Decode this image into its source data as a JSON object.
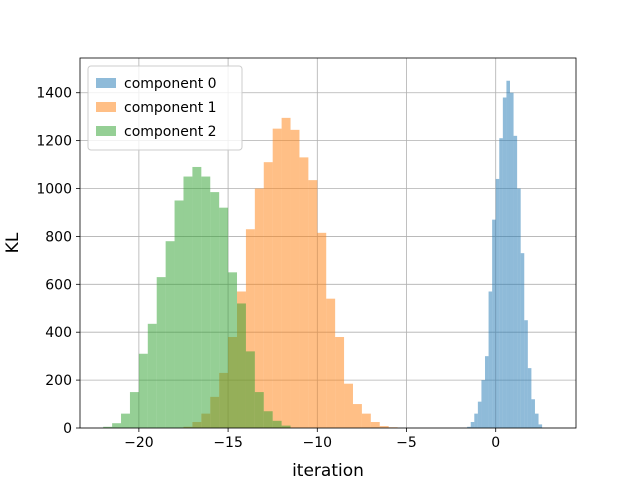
{
  "chart_data": {
    "type": "histogram",
    "title": "",
    "xlabel": "iteration",
    "ylabel": "KL",
    "xlim": [
      -23.3,
      4.5
    ],
    "ylim": [
      0,
      1545
    ],
    "xticks": [
      -20,
      -15,
      -10,
      -5,
      0
    ],
    "xtick_labels": [
      "−20",
      "−15",
      "−10",
      "−5",
      "0"
    ],
    "yticks": [
      0,
      200,
      400,
      600,
      800,
      1000,
      1200,
      1400
    ],
    "ytick_labels": [
      "0",
      "200",
      "400",
      "600",
      "800",
      "1000",
      "1200",
      "1400"
    ],
    "grid": true,
    "legend_position": "upper-left",
    "series": [
      {
        "name": "component 0",
        "color": "#1f77b4",
        "alpha": 0.5,
        "bin_width": 0.2,
        "bins": [
          [
            -1.6,
            5
          ],
          [
            -1.4,
            25
          ],
          [
            -1.2,
            60
          ],
          [
            -1.0,
            110
          ],
          [
            -0.8,
            200
          ],
          [
            -0.6,
            300
          ],
          [
            -0.4,
            570
          ],
          [
            -0.2,
            870
          ],
          [
            0.0,
            1040
          ],
          [
            0.2,
            1210
          ],
          [
            0.4,
            1380
          ],
          [
            0.6,
            1450
          ],
          [
            0.8,
            1400
          ],
          [
            1.0,
            1220
          ],
          [
            1.2,
            1000
          ],
          [
            1.4,
            730
          ],
          [
            1.6,
            450
          ],
          [
            1.8,
            250
          ],
          [
            2.0,
            120
          ],
          [
            2.2,
            60
          ],
          [
            2.4,
            15
          ]
        ]
      },
      {
        "name": "component 1",
        "color": "#ff7f0e",
        "alpha": 0.5,
        "bin_width": 0.5,
        "bins": [
          [
            -17.5,
            5
          ],
          [
            -17.0,
            25
          ],
          [
            -16.5,
            60
          ],
          [
            -16.0,
            130
          ],
          [
            -15.5,
            230
          ],
          [
            -15.0,
            380
          ],
          [
            -14.5,
            570
          ],
          [
            -14.0,
            830
          ],
          [
            -13.5,
            1000
          ],
          [
            -13.0,
            1110
          ],
          [
            -12.5,
            1250
          ],
          [
            -12.0,
            1295
          ],
          [
            -11.5,
            1245
          ],
          [
            -11.0,
            1130
          ],
          [
            -10.5,
            1035
          ],
          [
            -10.0,
            815
          ],
          [
            -9.5,
            540
          ],
          [
            -9.0,
            380
          ],
          [
            -8.5,
            185
          ],
          [
            -8.0,
            100
          ],
          [
            -7.5,
            60
          ],
          [
            -7.0,
            25
          ],
          [
            -6.5,
            8
          ],
          [
            -6.0,
            3
          ]
        ]
      },
      {
        "name": "component 2",
        "color": "#2ca02c",
        "alpha": 0.5,
        "bin_width": 0.5,
        "bins": [
          [
            -22.0,
            5
          ],
          [
            -21.5,
            20
          ],
          [
            -21.0,
            60
          ],
          [
            -20.5,
            150
          ],
          [
            -20.0,
            310
          ],
          [
            -19.5,
            435
          ],
          [
            -19.0,
            630
          ],
          [
            -18.5,
            780
          ],
          [
            -18.0,
            950
          ],
          [
            -17.5,
            1050
          ],
          [
            -17.0,
            1090
          ],
          [
            -16.5,
            1050
          ],
          [
            -16.0,
            985
          ],
          [
            -15.5,
            920
          ],
          [
            -15.0,
            650
          ],
          [
            -14.5,
            520
          ],
          [
            -14.0,
            320
          ],
          [
            -13.5,
            150
          ],
          [
            -13.0,
            70
          ],
          [
            -12.5,
            30
          ],
          [
            -12.0,
            10
          ]
        ]
      }
    ]
  }
}
